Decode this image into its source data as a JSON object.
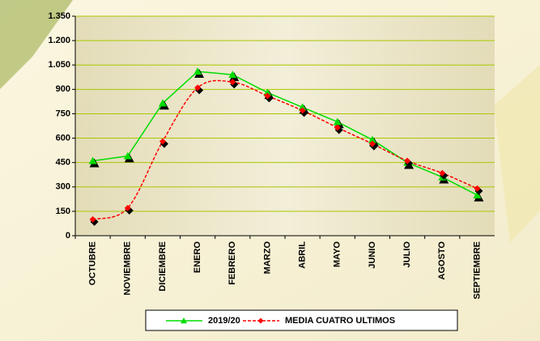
{
  "chart_data": {
    "type": "line",
    "categories": [
      "OCTUBRE",
      "NOVIEMBRE",
      "DICIEMBRE",
      "ENERO",
      "FEBRERO",
      "MARZO",
      "ABRIL",
      "MAYO",
      "JUNIO",
      "JULIO",
      "AGOSTO",
      "SEPTIEMBRE"
    ],
    "series": [
      {
        "name": "2019/20",
        "color": "#00dd00",
        "values": [
          460,
          490,
          815,
          1010,
          990,
          880,
          790,
          700,
          590,
          450,
          360,
          250
        ]
      },
      {
        "name": "MEDIA CUATRO ULTIMOS",
        "color": "#ff0000",
        "values": [
          100,
          170,
          580,
          910,
          945,
          860,
          770,
          665,
          565,
          460,
          385,
          290
        ]
      }
    ],
    "ylim": [
      0,
      1350
    ],
    "yticks": [
      0,
      150,
      300,
      450,
      600,
      750,
      900,
      {
        "value": 1050,
        "label": "1.050"
      },
      {
        "value": 1200,
        "label": "1.200"
      },
      {
        "value": 1350,
        "label": "1.350"
      }
    ],
    "grid": true,
    "legend": "bottom"
  }
}
